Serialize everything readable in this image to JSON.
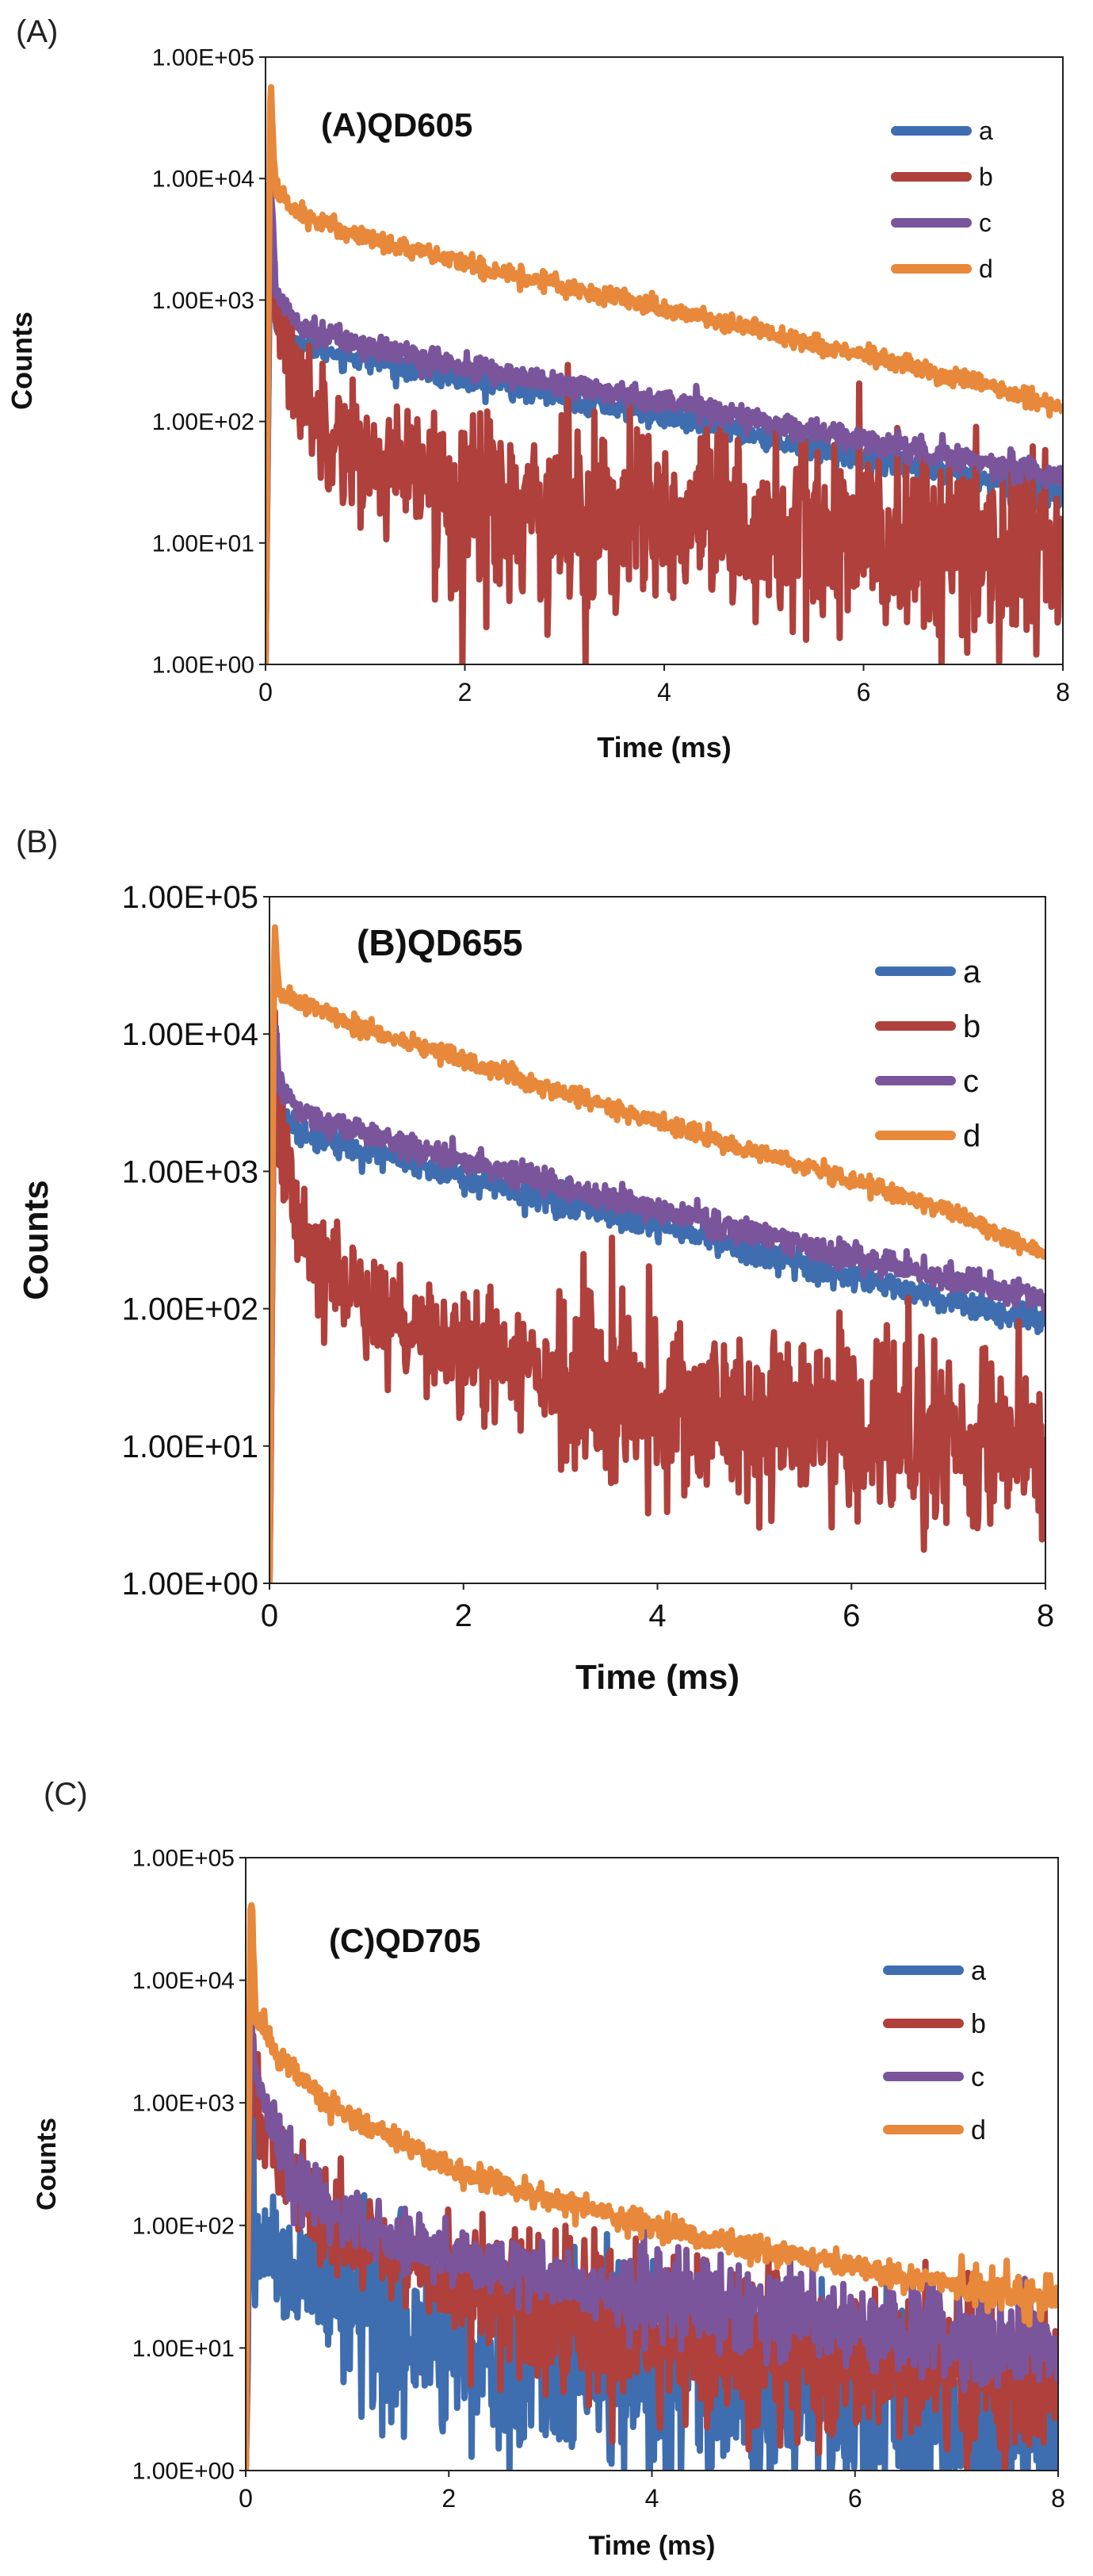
{
  "chart_data": [
    {
      "type": "line",
      "panel_label": "(A)",
      "title": "(A)QD605",
      "xlabel": "Time (ms)",
      "ylabel": "Counts",
      "xlim": [
        0,
        8
      ],
      "ylim_log10": [
        0,
        5
      ],
      "x_ticks": [
        "0",
        "2",
        "4",
        "6",
        "8"
      ],
      "y_ticks": [
        "1.00E+00",
        "1.00E+01",
        "1.00E+02",
        "1.00E+03",
        "1.00E+04",
        "1.00E+05"
      ],
      "legend": [
        "a",
        "b",
        "c",
        "d"
      ],
      "legend_position": "top-right",
      "series": [
        {
          "name": "a",
          "color": "#3f6eb0",
          "x": [
            0,
            0.05,
            0.1,
            0.3,
            0.5,
            1,
            2,
            3,
            4,
            5,
            6,
            7,
            8
          ],
          "values": [
            1,
            8000,
            600,
            450,
            400,
            330,
            220,
            160,
            110,
            75,
            50,
            35,
            25
          ],
          "noise": 0.05
        },
        {
          "name": "b",
          "color": "#b0403c",
          "x": [
            0,
            0.05,
            0.1,
            0.3,
            0.5,
            1,
            2,
            3,
            4,
            5,
            6,
            7,
            8
          ],
          "values": [
            1,
            9000,
            1000,
            220,
            120,
            50,
            25,
            18,
            14,
            12,
            10,
            9,
            8
          ],
          "noise": 0.25
        },
        {
          "name": "c",
          "color": "#7a559b",
          "x": [
            0,
            0.05,
            0.1,
            0.3,
            0.5,
            1,
            2,
            3,
            4,
            5,
            6,
            7,
            8
          ],
          "values": [
            1,
            10000,
            1200,
            700,
            550,
            420,
            280,
            200,
            150,
            100,
            70,
            50,
            35
          ],
          "noise": 0.05
        },
        {
          "name": "d",
          "color": "#e8883a",
          "x": [
            0,
            0.05,
            0.1,
            0.3,
            0.5,
            1,
            2,
            3,
            4,
            5,
            6,
            7,
            8
          ],
          "values": [
            1,
            70000,
            8000,
            5500,
            4500,
            3300,
            2000,
            1300,
            850,
            550,
            350,
            220,
            130
          ],
          "noise": 0.04
        }
      ]
    },
    {
      "type": "line",
      "panel_label": "(B)",
      "title": "(B)QD655",
      "xlabel": "Time (ms)",
      "ylabel": "Counts",
      "xlim": [
        0,
        8
      ],
      "ylim_log10": [
        0,
        5
      ],
      "x_ticks": [
        "0",
        "2",
        "4",
        "6",
        "8"
      ],
      "y_ticks": [
        "1.00E+00",
        "1.00E+01",
        "1.00E+02",
        "1.00E+03",
        "1.00E+04",
        "1.00E+05"
      ],
      "legend": [
        "a",
        "b",
        "c",
        "d"
      ],
      "legend_position": "top-right",
      "series": [
        {
          "name": "a",
          "color": "#3f6eb0",
          "x": [
            0,
            0.05,
            0.1,
            0.3,
            0.5,
            1,
            2,
            3,
            4,
            5,
            6,
            7,
            8
          ],
          "values": [
            1,
            12000,
            2500,
            2000,
            1800,
            1400,
            900,
            600,
            400,
            260,
            170,
            115,
            80
          ],
          "noise": 0.05
        },
        {
          "name": "b",
          "color": "#b0403c",
          "x": [
            0,
            0.05,
            0.1,
            0.3,
            0.5,
            1,
            2,
            3,
            4,
            5,
            6,
            7,
            8
          ],
          "values": [
            1,
            10000,
            2000,
            500,
            250,
            100,
            50,
            30,
            22,
            18,
            15,
            12,
            10
          ],
          "noise": 0.2
        },
        {
          "name": "c",
          "color": "#7a559b",
          "x": [
            0,
            0.05,
            0.1,
            0.3,
            0.5,
            1,
            2,
            3,
            4,
            5,
            6,
            7,
            8
          ],
          "values": [
            1,
            15000,
            4000,
            2800,
            2400,
            1900,
            1200,
            800,
            520,
            350,
            240,
            165,
            115
          ],
          "noise": 0.05
        },
        {
          "name": "d",
          "color": "#e8883a",
          "x": [
            0,
            0.05,
            0.1,
            0.3,
            0.5,
            1,
            2,
            3,
            4,
            5,
            6,
            7,
            8
          ],
          "values": [
            1,
            65000,
            20000,
            17000,
            15000,
            11000,
            6500,
            3800,
            2300,
            1400,
            850,
            520,
            250
          ],
          "noise": 0.03
        }
      ]
    },
    {
      "type": "line",
      "panel_label": "(C)",
      "title": "(C)QD705",
      "xlabel": "Time (ms)",
      "ylabel": "Counts",
      "xlim": [
        0,
        8
      ],
      "ylim_log10": [
        0,
        5
      ],
      "x_ticks": [
        "0",
        "2",
        "4",
        "6",
        "8"
      ],
      "y_ticks": [
        "1.00E+00",
        "1.00E+01",
        "1.00E+02",
        "1.00E+03",
        "1.00E+04",
        "1.00E+05"
      ],
      "legend": [
        "a",
        "b",
        "c",
        "d"
      ],
      "legend_position": "top-right",
      "series": [
        {
          "name": "a",
          "color": "#3f6eb0",
          "x": [
            0,
            0.05,
            0.1,
            0.3,
            0.5,
            1,
            2,
            3,
            4,
            5,
            6,
            7,
            8
          ],
          "values": [
            1,
            3000,
            80,
            50,
            35,
            25,
            12,
            7,
            5,
            4,
            3,
            2.5,
            2
          ],
          "noise": 0.25
        },
        {
          "name": "b",
          "color": "#b0403c",
          "x": [
            0,
            0.05,
            0.1,
            0.3,
            0.5,
            1,
            2,
            3,
            4,
            5,
            6,
            7,
            8
          ],
          "values": [
            1,
            5000,
            1000,
            400,
            200,
            80,
            35,
            20,
            14,
            10,
            8,
            6,
            5
          ],
          "noise": 0.2
        },
        {
          "name": "c",
          "color": "#7a559b",
          "x": [
            0,
            0.05,
            0.1,
            0.3,
            0.5,
            1,
            2,
            3,
            4,
            5,
            6,
            7,
            8
          ],
          "values": [
            1,
            6000,
            1500,
            500,
            250,
            110,
            55,
            38,
            28,
            20,
            15,
            12,
            10
          ],
          "noise": 0.12
        },
        {
          "name": "d",
          "color": "#e8883a",
          "x": [
            0,
            0.05,
            0.1,
            0.3,
            0.5,
            1,
            2,
            3,
            4,
            5,
            6,
            7,
            8
          ],
          "values": [
            1,
            60000,
            5000,
            2500,
            1700,
            800,
            300,
            160,
            100,
            65,
            45,
            32,
            25
          ],
          "noise": 0.05
        }
      ]
    }
  ]
}
